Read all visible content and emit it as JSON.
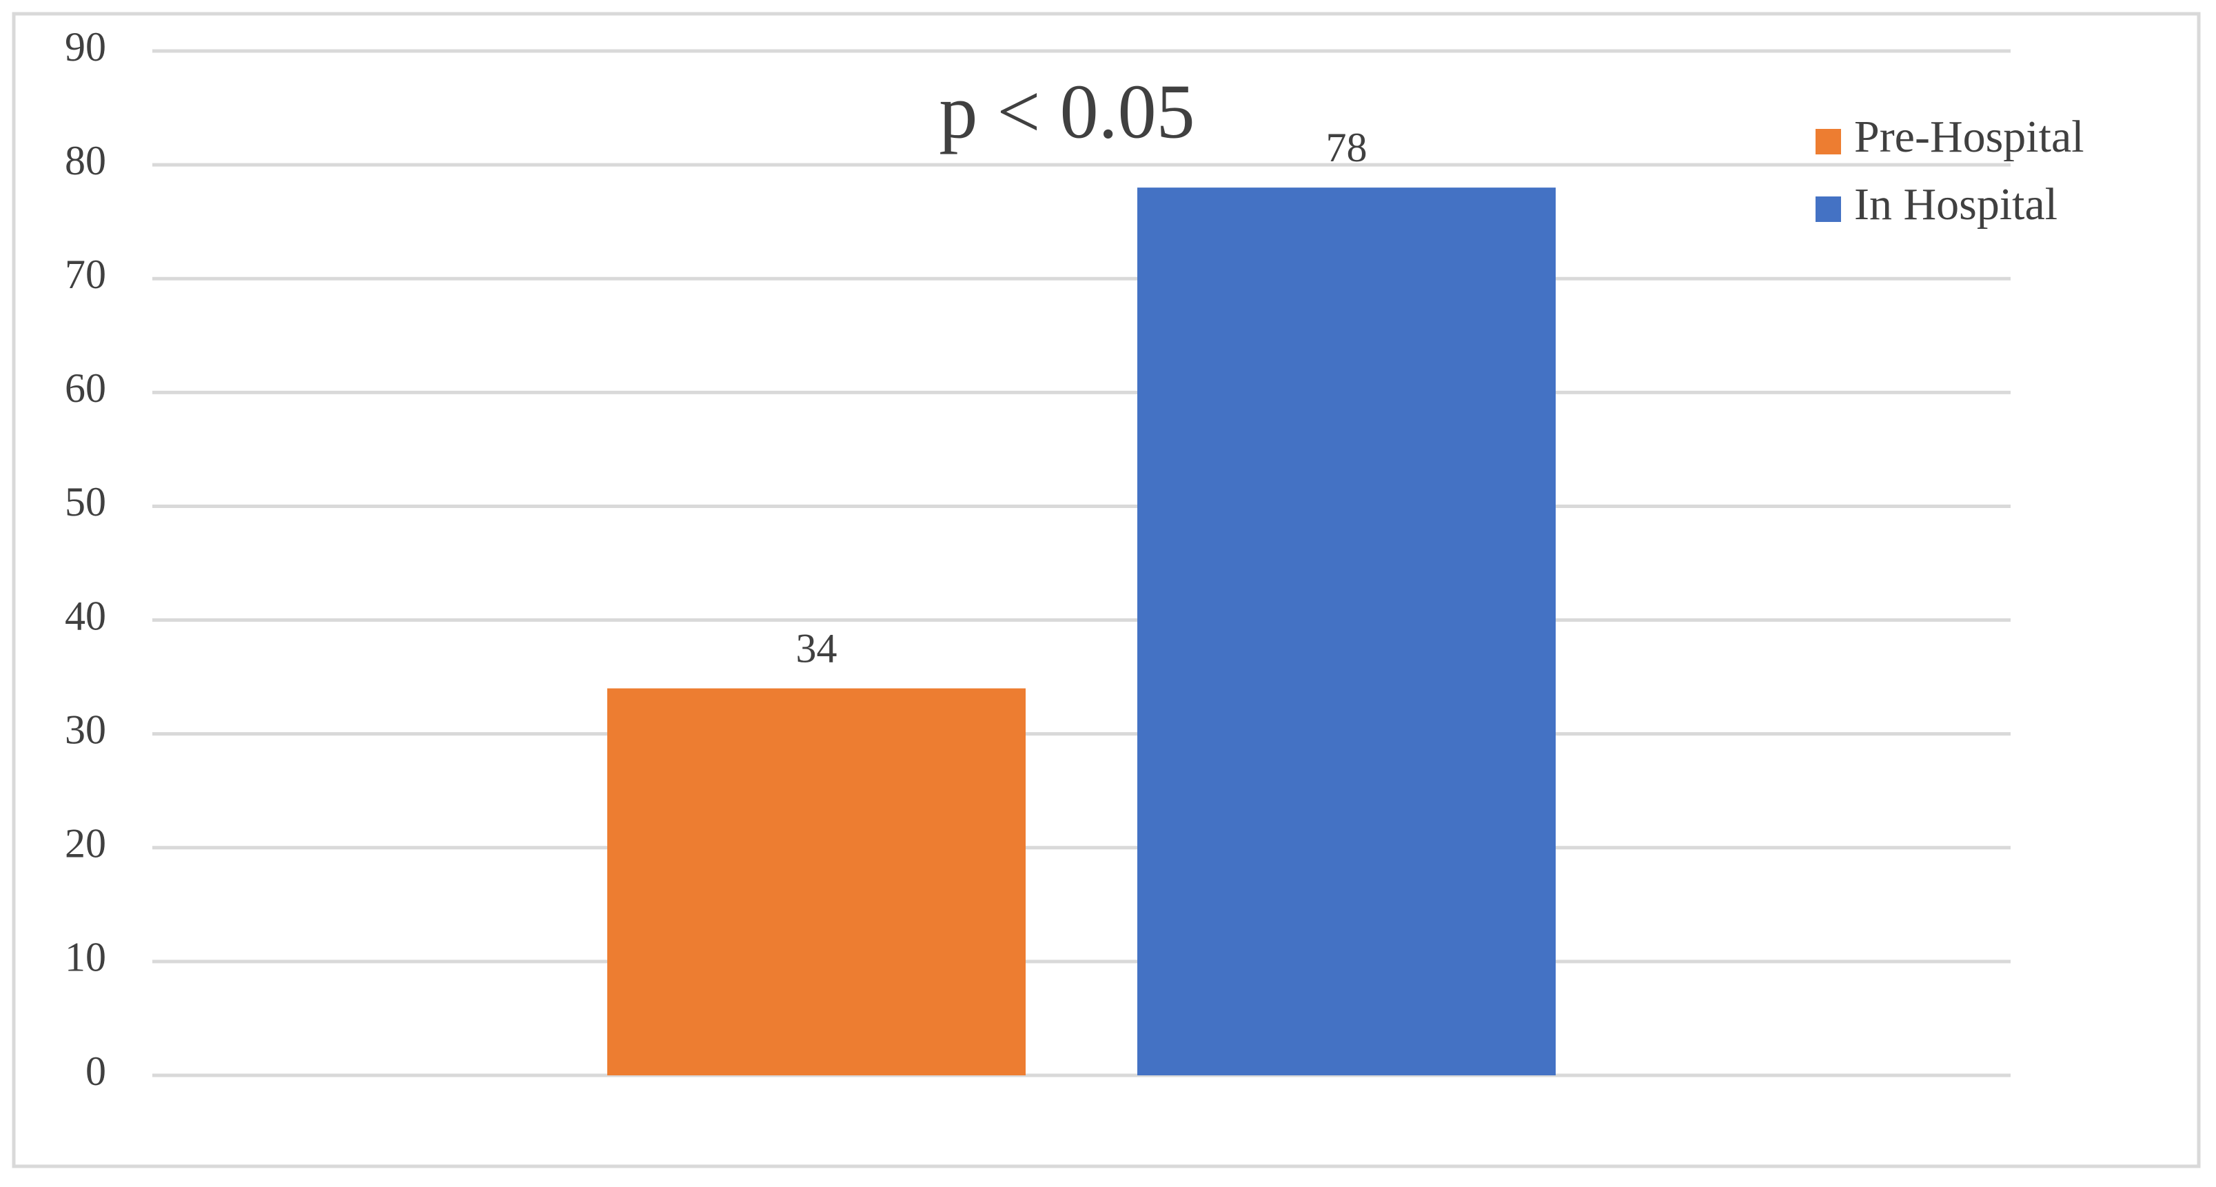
{
  "chart_data": {
    "type": "bar",
    "annotation": "p < 0.05",
    "categories": [
      null
    ],
    "series": [
      {
        "name": "Pre-Hospital",
        "color": "#ED7D31",
        "values": [
          34
        ]
      },
      {
        "name": "In Hospital",
        "color": "#4472C4",
        "values": [
          78
        ]
      }
    ],
    "ylim": [
      0,
      90
    ],
    "yticks": [
      0,
      10,
      20,
      30,
      40,
      50,
      60,
      70,
      80,
      90
    ],
    "grid": true,
    "legend": "top-right"
  }
}
